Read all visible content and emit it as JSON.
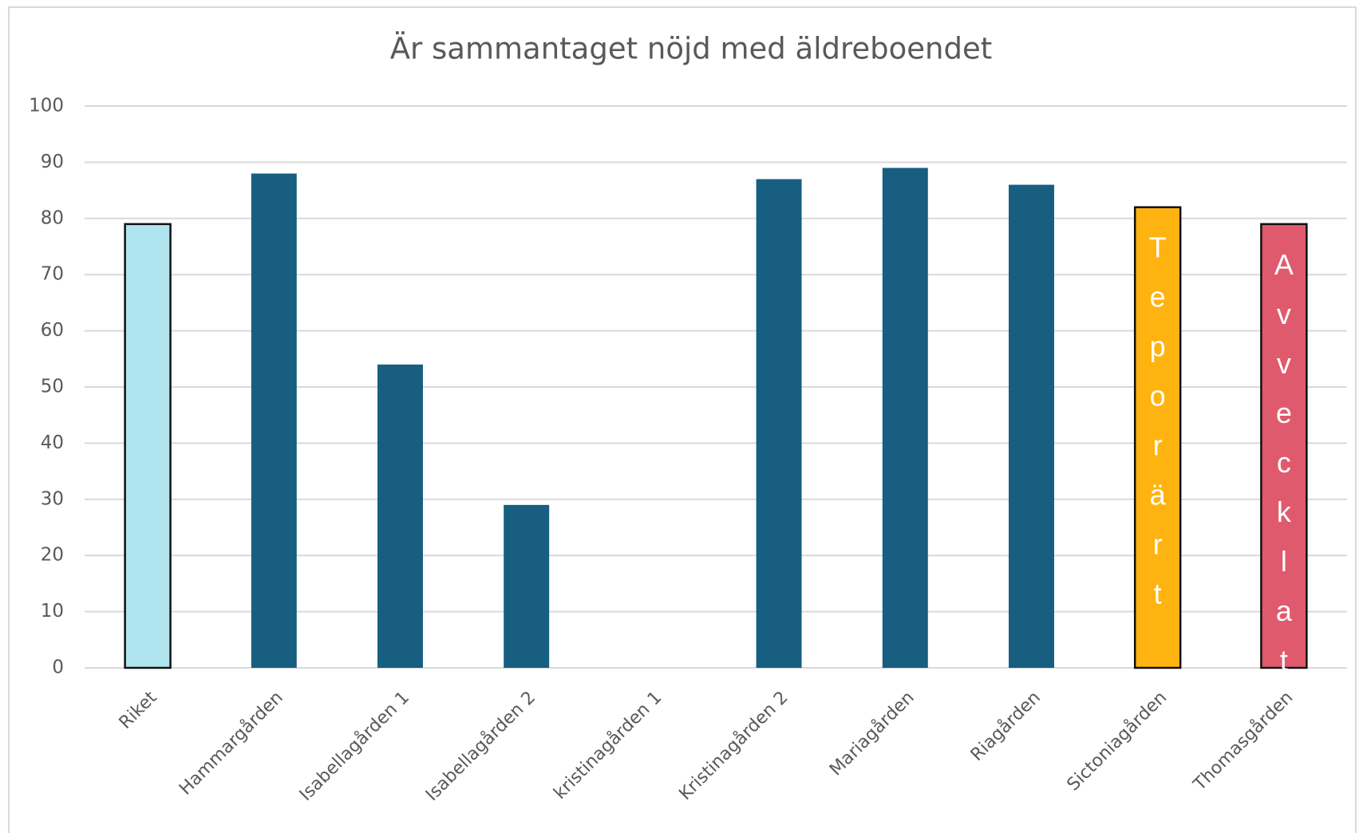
{
  "chart_data": {
    "type": "bar",
    "title": "Är sammantaget nöjd med äldreboendet",
    "categories": [
      "Riket",
      "Hammargården",
      "Isabellagården 1",
      "Isabellagården 2",
      "kristinagården 1",
      "Kristinagården 2",
      "Mariagården",
      "Riagården",
      "Sictoniagården",
      "Thomasgården"
    ],
    "values": [
      79,
      88,
      54,
      29,
      null,
      87,
      89,
      86,
      82,
      79
    ],
    "colors": [
      "#b0e4ee",
      "#175e80",
      "#175e80",
      "#175e80",
      "#175e80",
      "#175e80",
      "#175e80",
      "#175e80",
      "#ffb310",
      "#e05a6e"
    ],
    "ylim": [
      0,
      100
    ],
    "yticks": [
      0,
      10,
      20,
      30,
      40,
      50,
      60,
      70,
      80,
      90,
      100
    ],
    "grid": true,
    "annotations": [
      {
        "category": 8,
        "text": "Teporärt"
      },
      {
        "category": 9,
        "text": "Avvecklat"
      }
    ]
  }
}
